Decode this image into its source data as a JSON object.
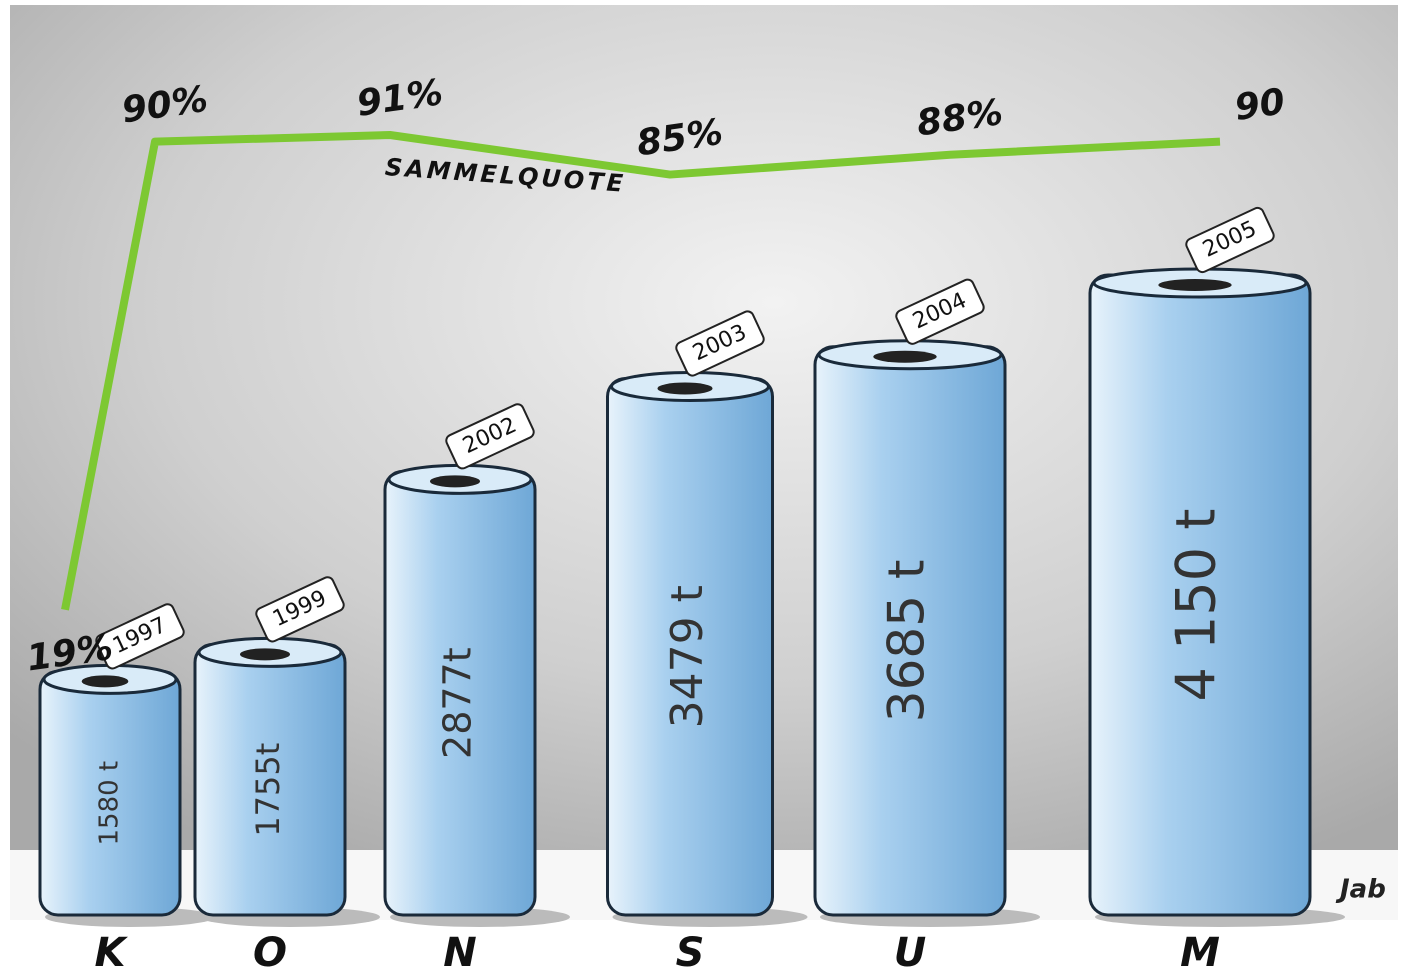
{
  "chart_data": {
    "type": "bar",
    "categories": [
      "1997",
      "1999",
      "2002",
      "2003",
      "2004",
      "2005"
    ],
    "series": [
      {
        "type": "bar",
        "color": "#a9d0ef",
        "values": [
          1580,
          1755,
          2877,
          3479,
          3685,
          4150
        ],
        "value_labels": [
          "1580 t",
          "1755t",
          "2877t",
          "3479 t",
          "3685 t",
          "4 150 t"
        ]
      },
      {
        "type": "line",
        "name": "SAMMELQUOTE",
        "axis": "y2",
        "color": "#7dc832",
        "values": [
          19,
          90,
          91,
          85,
          88,
          90
        ],
        "value_labels": [
          "19%",
          "90%",
          "91%",
          "85%",
          "88%",
          "90"
        ]
      }
    ],
    "letters": [
      "K",
      "O",
      "N",
      "S",
      "U",
      "M"
    ],
    "signature": "Jab"
  }
}
